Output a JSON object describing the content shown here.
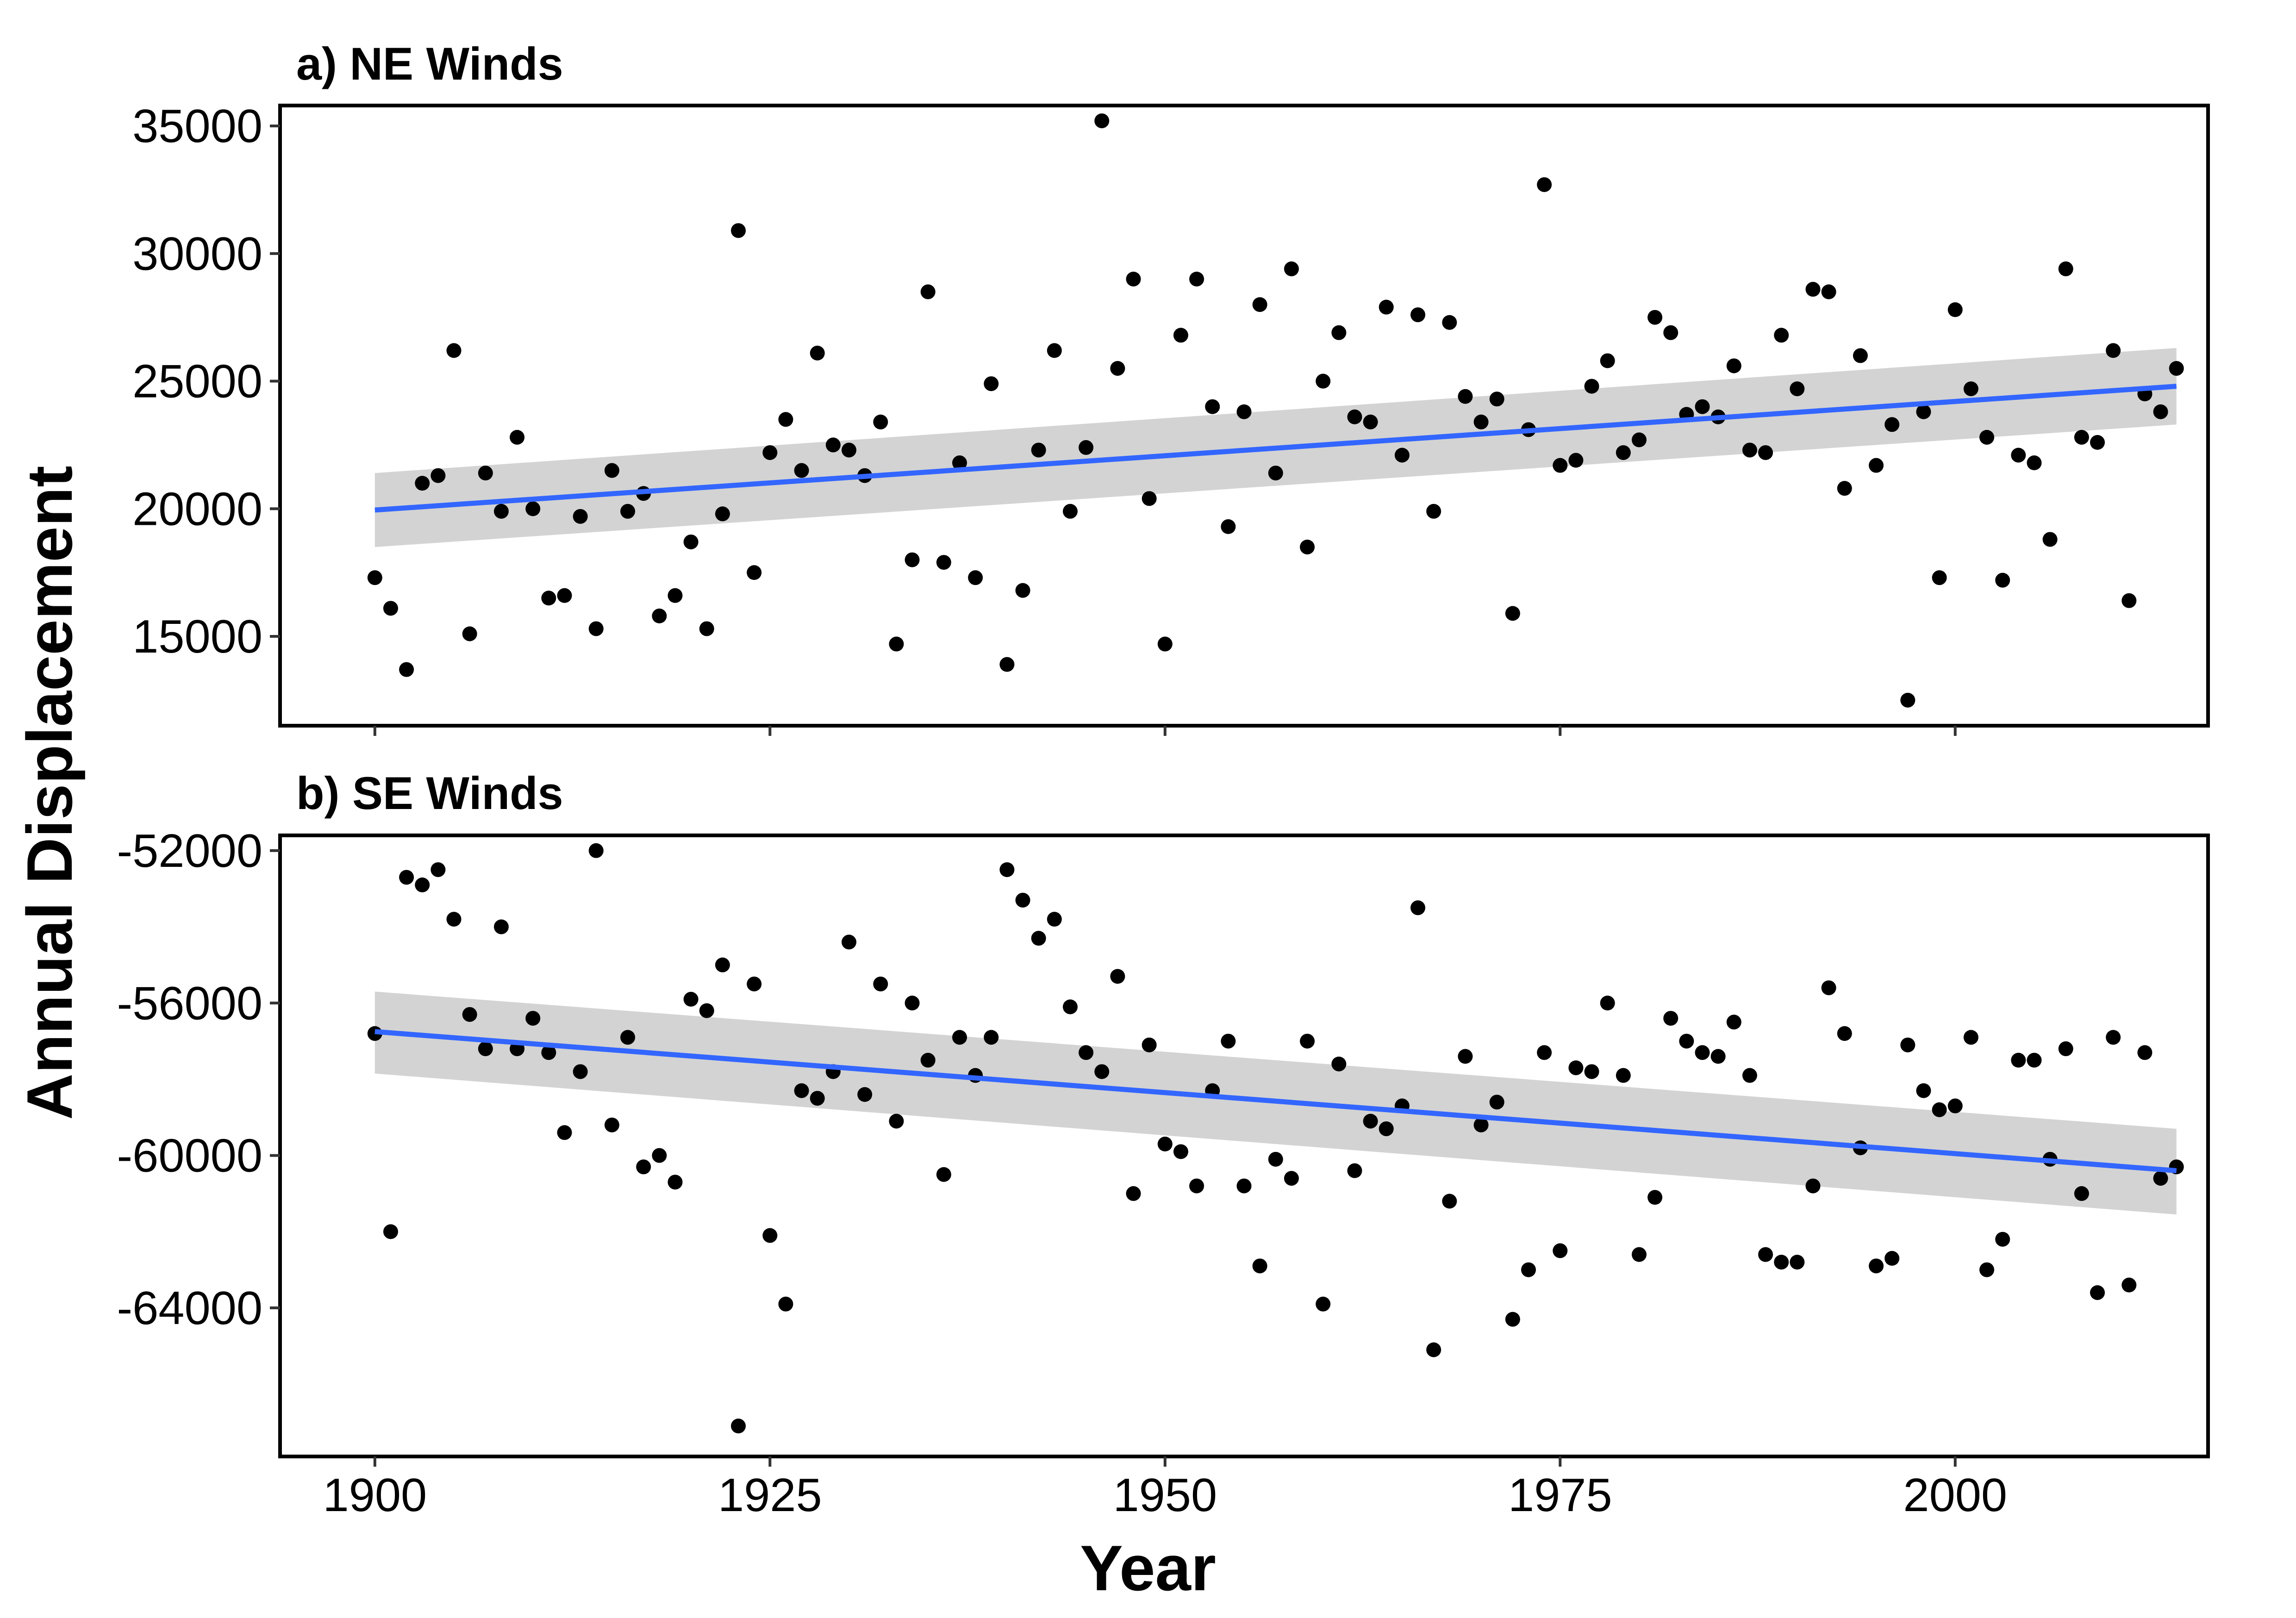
{
  "colors": {
    "points": "#000000",
    "trend_line": "#3366FF",
    "confidence_band": "#D3D3D3",
    "background": "#FFFFFF",
    "frame": "#000000"
  },
  "chart_data": [
    {
      "type": "scatter",
      "title": "a) NE Winds",
      "xlabel": "Year",
      "ylabel": "Annual Displacement",
      "xlim": [
        1894,
        2016
      ],
      "ylim": [
        11500,
        35800
      ],
      "xticks": [
        1900,
        1925,
        1950,
        1975,
        2000
      ],
      "yticks": [
        15000,
        20000,
        25000,
        30000,
        35000
      ],
      "show_x_tick_labels": false,
      "grid": false,
      "trend": {
        "method": "linear fit",
        "x": [
          1900,
          2014
        ],
        "y": [
          19950,
          24800
        ],
        "ci_lower": [
          18500,
          23300
        ],
        "ci_upper": [
          21400,
          26300
        ]
      },
      "x": [
        1900,
        1901,
        1902,
        1903,
        1904,
        1905,
        1906,
        1907,
        1908,
        1909,
        1910,
        1911,
        1912,
        1913,
        1914,
        1915,
        1916,
        1917,
        1918,
        1919,
        1920,
        1921,
        1922,
        1923,
        1924,
        1925,
        1926,
        1927,
        1928,
        1929,
        1930,
        1931,
        1932,
        1933,
        1934,
        1935,
        1936,
        1937,
        1938,
        1939,
        1940,
        1941,
        1942,
        1943,
        1944,
        1945,
        1946,
        1947,
        1948,
        1949,
        1950,
        1951,
        1952,
        1953,
        1954,
        1955,
        1956,
        1957,
        1958,
        1959,
        1960,
        1961,
        1962,
        1963,
        1964,
        1965,
        1966,
        1967,
        1968,
        1969,
        1970,
        1971,
        1972,
        1973,
        1974,
        1975,
        1976,
        1977,
        1978,
        1979,
        1980,
        1981,
        1982,
        1983,
        1984,
        1985,
        1986,
        1987,
        1988,
        1989,
        1990,
        1991,
        1992,
        1993,
        1994,
        1995,
        1996,
        1997,
        1998,
        1999,
        2000,
        2001,
        2002,
        2003,
        2004,
        2005,
        2006,
        2007,
        2008,
        2009,
        2010,
        2011,
        2012,
        2013,
        2014
      ],
      "y": [
        17300,
        16100,
        13700,
        21000,
        21300,
        26200,
        15100,
        21400,
        19900,
        22800,
        20000,
        16500,
        16600,
        19700,
        15300,
        21500,
        19900,
        20600,
        15800,
        16600,
        18700,
        15300,
        19800,
        30900,
        17500,
        22200,
        23500,
        21500,
        26100,
        22500,
        22300,
        21300,
        23400,
        14700,
        18000,
        28500,
        17900,
        21800,
        17300,
        24900,
        13900,
        16800,
        22300,
        26200,
        19900,
        22400,
        35200,
        25500,
        29000,
        20400,
        14700,
        26800,
        29000,
        24000,
        19300,
        23800,
        28000,
        21400,
        29400,
        18500,
        25000,
        26900,
        23600,
        23400,
        27900,
        22100,
        27600,
        19900,
        27300,
        24400,
        23400,
        24300,
        15900,
        23100,
        32700,
        21700,
        21900,
        24800,
        25800,
        22200,
        22700,
        27500,
        26900,
        23700,
        24000,
        23600,
        25600,
        22300,
        22200,
        26800,
        24700,
        28600,
        28500,
        20800,
        26000,
        21700,
        23300,
        12500,
        23800,
        17300,
        27800,
        24700,
        22800,
        17200,
        22100,
        21800,
        18800,
        29400,
        22800,
        22600,
        26200,
        16400,
        24500,
        23800,
        25500
      ]
    },
    {
      "type": "scatter",
      "title": "b) SE Winds",
      "xlabel": "Year",
      "ylabel": "Annual Displacement",
      "xlim": [
        1894,
        2016
      ],
      "ylim": [
        -67900,
        -51600
      ],
      "xticks": [
        1900,
        1925,
        1950,
        1975,
        2000
      ],
      "xtick_labels": [
        "1900",
        "1925",
        "1950",
        "1975",
        "2000"
      ],
      "yticks": [
        -64000,
        -60000,
        -56000,
        -52000
      ],
      "grid": false,
      "trend": {
        "method": "linear fit",
        "x": [
          1900,
          2014
        ],
        "y": [
          -56750,
          -60400
        ],
        "ci_lower": [
          -57850,
          -61550
        ],
        "ci_upper": [
          -55700,
          -59300
        ]
      },
      "x": [
        1900,
        1901,
        1902,
        1903,
        1904,
        1905,
        1906,
        1907,
        1908,
        1909,
        1910,
        1911,
        1912,
        1913,
        1914,
        1915,
        1916,
        1917,
        1918,
        1919,
        1920,
        1921,
        1922,
        1923,
        1924,
        1925,
        1926,
        1927,
        1928,
        1929,
        1930,
        1931,
        1932,
        1933,
        1934,
        1935,
        1936,
        1937,
        1938,
        1939,
        1940,
        1941,
        1942,
        1943,
        1944,
        1945,
        1946,
        1947,
        1948,
        1949,
        1950,
        1951,
        1952,
        1953,
        1954,
        1955,
        1956,
        1957,
        1958,
        1959,
        1960,
        1961,
        1962,
        1963,
        1964,
        1965,
        1966,
        1967,
        1968,
        1969,
        1970,
        1971,
        1972,
        1973,
        1974,
        1975,
        1976,
        1977,
        1978,
        1979,
        1980,
        1981,
        1982,
        1983,
        1984,
        1985,
        1986,
        1987,
        1988,
        1989,
        1990,
        1991,
        1992,
        1993,
        1994,
        1995,
        1996,
        1997,
        1998,
        1999,
        2000,
        2001,
        2002,
        2003,
        2004,
        2005,
        2006,
        2007,
        2008,
        2009,
        2010,
        2011,
        2012,
        2013,
        2014
      ],
      "y": [
        -56800,
        -62000,
        -52700,
        -52900,
        -52500,
        -53800,
        -56300,
        -57200,
        -54000,
        -57200,
        -56400,
        -57300,
        -59400,
        -57800,
        -52000,
        -59200,
        -56900,
        -60300,
        -60000,
        -60700,
        -55900,
        -56200,
        -55000,
        -67100,
        -55500,
        -62100,
        -63900,
        -58300,
        -58500,
        -57800,
        -54400,
        -58400,
        -55500,
        -59100,
        -56000,
        -57500,
        -60500,
        -56900,
        -57900,
        -56900,
        -52500,
        -53300,
        -54300,
        -53800,
        -56100,
        -57300,
        -57800,
        -55300,
        -61000,
        -57100,
        -59700,
        -59900,
        -60800,
        -58300,
        -57000,
        -60800,
        -62900,
        -60100,
        -60600,
        -57000,
        -63900,
        -57600,
        -60400,
        -59100,
        -59300,
        -58700,
        -53500,
        -65100,
        -61200,
        -57400,
        -59200,
        -58600,
        -64300,
        -63000,
        -57300,
        -62500,
        -57700,
        -57800,
        -56000,
        -57900,
        -62600,
        -61100,
        -56400,
        -57000,
        -57300,
        -57400,
        -56500,
        -57900,
        -62600,
        -62800,
        -62800,
        -60800,
        -55600,
        -56800,
        -59800,
        -62900,
        -62700,
        -57100,
        -58300,
        -58800,
        -58700,
        -56900,
        -63000,
        -62200,
        -57500,
        -57500,
        -60100,
        -57200,
        -61000,
        -63600,
        -56900,
        -63400,
        -57300,
        -60600,
        -60300
      ]
    }
  ]
}
